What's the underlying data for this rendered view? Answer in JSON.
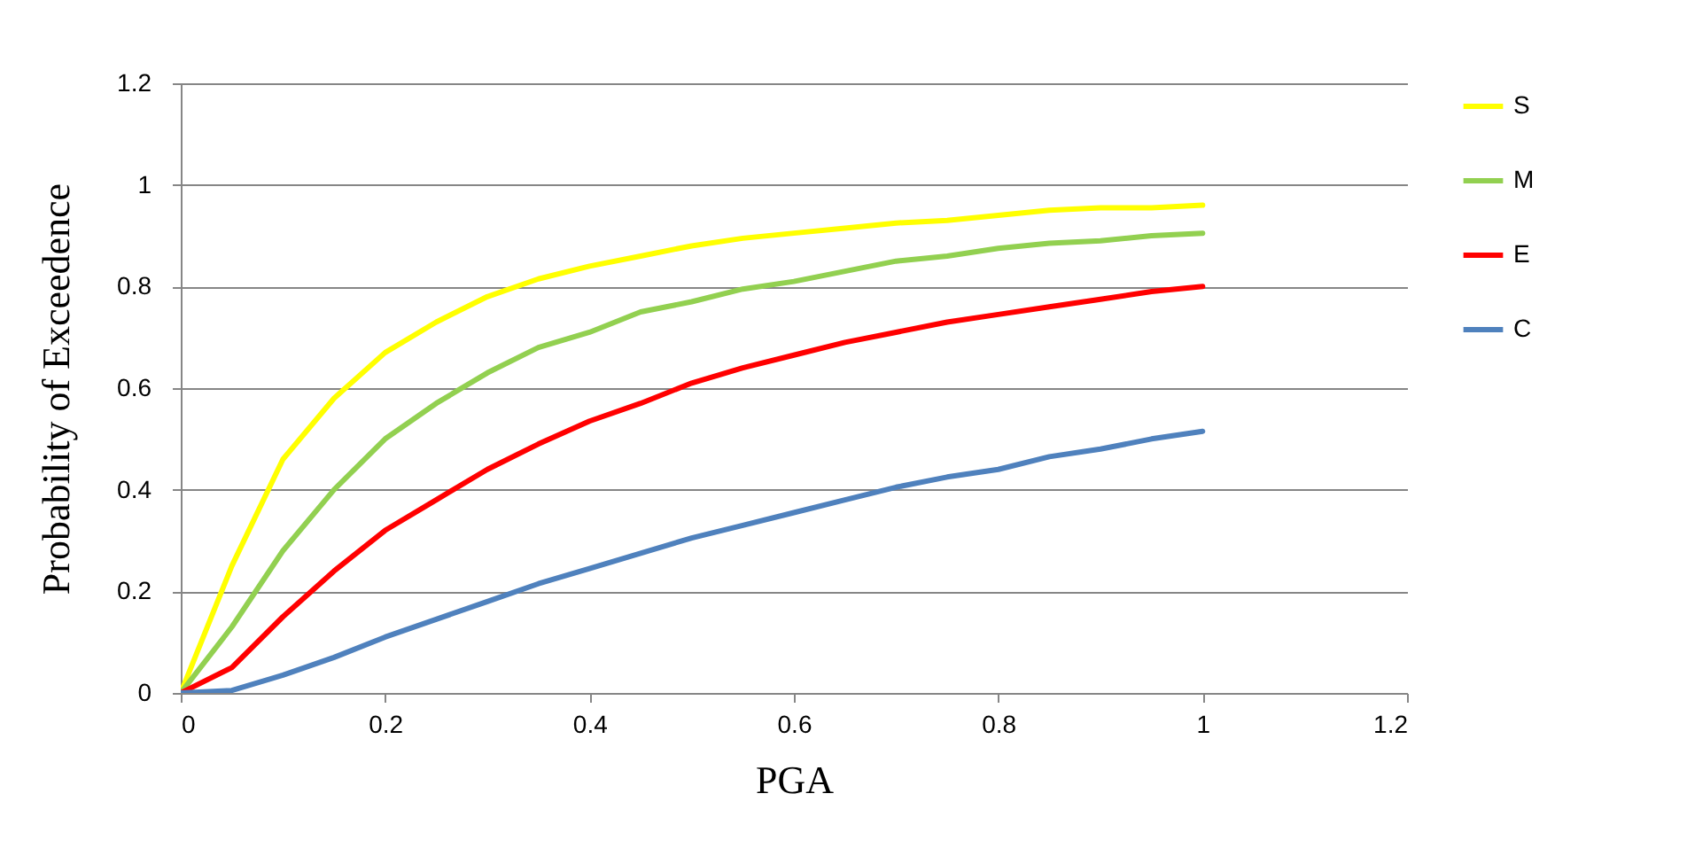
{
  "chart_data": {
    "type": "line",
    "xlabel": "PGA",
    "ylabel": "Probability of Exceedence",
    "x": [
      0,
      0.05,
      0.1,
      0.15,
      0.2,
      0.25,
      0.3,
      0.35,
      0.4,
      0.45,
      0.5,
      0.55,
      0.6,
      0.65,
      0.7,
      0.75,
      0.8,
      0.85,
      0.9,
      0.95,
      1
    ],
    "series": [
      {
        "name": "S",
        "color": "#ffff00",
        "values": [
          0,
          0.25,
          0.46,
          0.58,
          0.67,
          0.73,
          0.78,
          0.815,
          0.84,
          0.86,
          0.88,
          0.895,
          0.905,
          0.915,
          0.925,
          0.93,
          0.94,
          0.95,
          0.955,
          0.955,
          0.96
        ]
      },
      {
        "name": "M",
        "color": "#92d050",
        "values": [
          0,
          0.13,
          0.28,
          0.4,
          0.5,
          0.57,
          0.63,
          0.68,
          0.71,
          0.75,
          0.77,
          0.795,
          0.81,
          0.83,
          0.85,
          0.86,
          0.875,
          0.885,
          0.89,
          0.9,
          0.905
        ]
      },
      {
        "name": "E",
        "color": "#ff0000",
        "values": [
          0,
          0.05,
          0.15,
          0.24,
          0.32,
          0.38,
          0.44,
          0.49,
          0.535,
          0.57,
          0.61,
          0.64,
          0.665,
          0.69,
          0.71,
          0.73,
          0.745,
          0.76,
          0.775,
          0.79,
          0.8
        ]
      },
      {
        "name": "C",
        "color": "#4f81bd",
        "values": [
          0,
          0.005,
          0.035,
          0.07,
          0.11,
          0.145,
          0.18,
          0.215,
          0.245,
          0.275,
          0.305,
          0.33,
          0.355,
          0.38,
          0.405,
          0.425,
          0.44,
          0.465,
          0.48,
          0.5,
          0.515
        ]
      }
    ],
    "xlim": [
      0,
      1.2
    ],
    "xticks": [
      0,
      0.2,
      0.4,
      0.6,
      0.8,
      1,
      1.2
    ],
    "ylim": [
      0,
      1.2
    ],
    "yticks": [
      0,
      0.2,
      0.4,
      0.6,
      0.8,
      1,
      1.2
    ],
    "grid": "y",
    "legend": "right",
    "marker": "none",
    "line_style": "solid"
  }
}
